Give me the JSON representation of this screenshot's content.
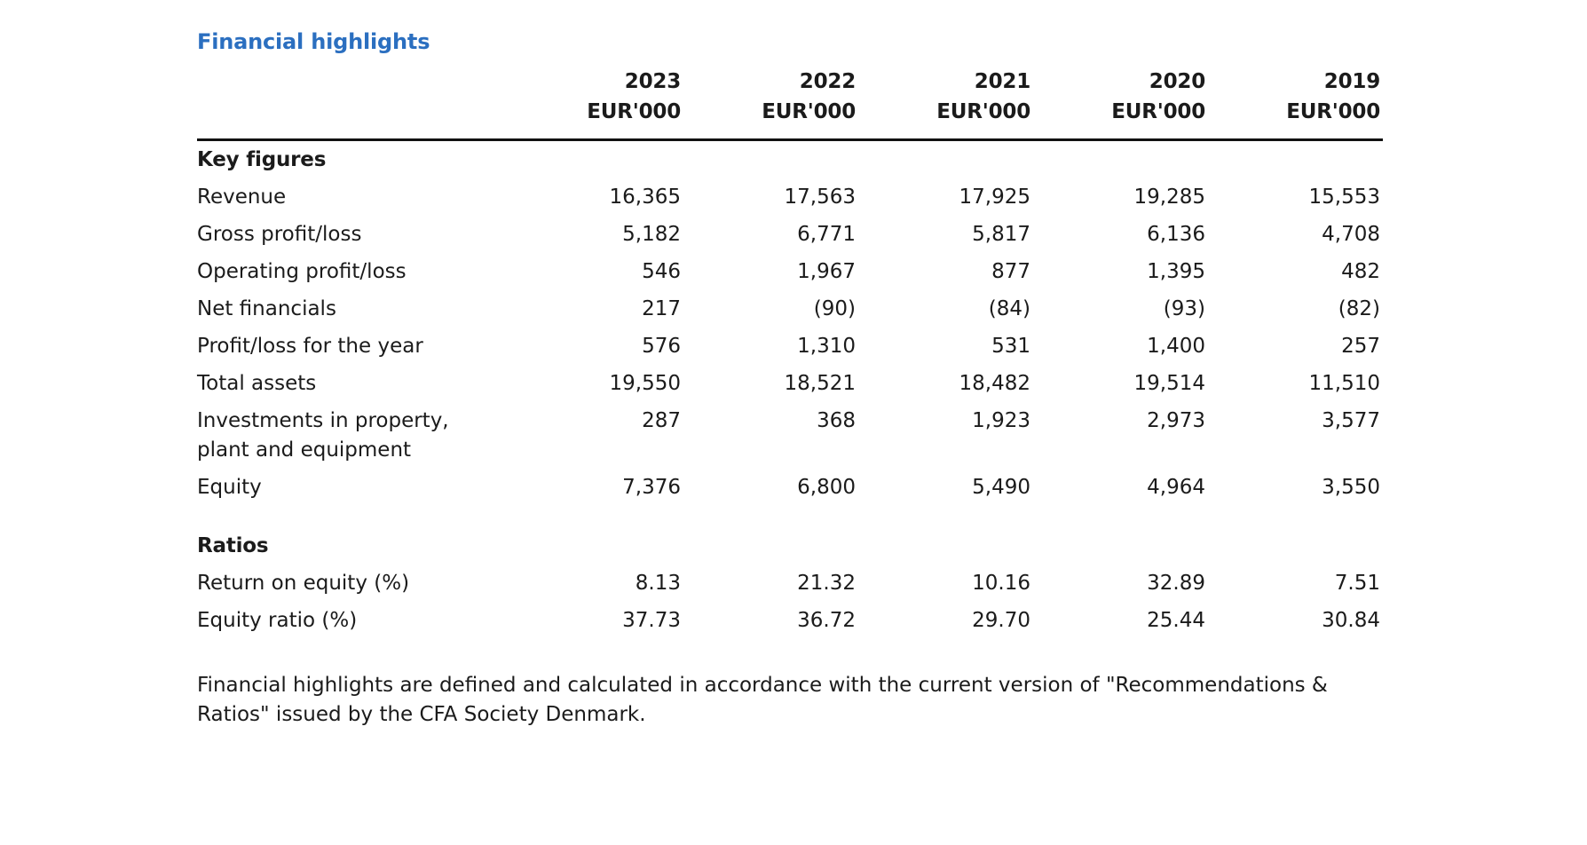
{
  "page": {
    "title": "Financial highlights",
    "title_color": "#2b6fc0",
    "text_color": "#1b1b1b"
  },
  "table": {
    "years": [
      "2023",
      "2022",
      "2021",
      "2020",
      "2019"
    ],
    "unit": "EUR'000",
    "sections": [
      {
        "heading": "Key figures",
        "rows": [
          {
            "label": "Revenue",
            "values": [
              "16,365",
              "17,563",
              "17,925",
              "19,285",
              "15,553"
            ]
          },
          {
            "label": "Gross profit/loss",
            "values": [
              "5,182",
              "6,771",
              "5,817",
              "6,136",
              "4,708"
            ]
          },
          {
            "label": "Operating profit/loss",
            "values": [
              "546",
              "1,967",
              "877",
              "1,395",
              "482"
            ]
          },
          {
            "label": "Net financials",
            "values": [
              "217",
              "(90)",
              "(84)",
              "(93)",
              "(82)"
            ]
          },
          {
            "label": "Profit/loss for the year",
            "values": [
              "576",
              "1,310",
              "531",
              "1,400",
              "257"
            ]
          },
          {
            "label": "Total assets",
            "values": [
              "19,550",
              "18,521",
              "18,482",
              "19,514",
              "11,510"
            ]
          },
          {
            "label": [
              "Investments in property,",
              "plant and equipment"
            ],
            "values": [
              "287",
              "368",
              "1,923",
              "2,973",
              "3,577"
            ]
          },
          {
            "label": "Equity",
            "values": [
              "7,376",
              "6,800",
              "5,490",
              "4,964",
              "3,550"
            ]
          }
        ]
      },
      {
        "heading": "Ratios",
        "rows": [
          {
            "label": "Return on equity (%)",
            "values": [
              "8.13",
              "21.32",
              "10.16",
              "32.89",
              "7.51"
            ]
          },
          {
            "label": "Equity ratio (%)",
            "values": [
              "37.73",
              "36.72",
              "29.70",
              "25.44",
              "30.84"
            ]
          }
        ]
      }
    ],
    "footnote_lines": [
      "Financial highlights are defined and calculated in accordance with the current version of \"Recommendations &",
      "Ratios\" issued by the CFA Society Denmark."
    ]
  }
}
